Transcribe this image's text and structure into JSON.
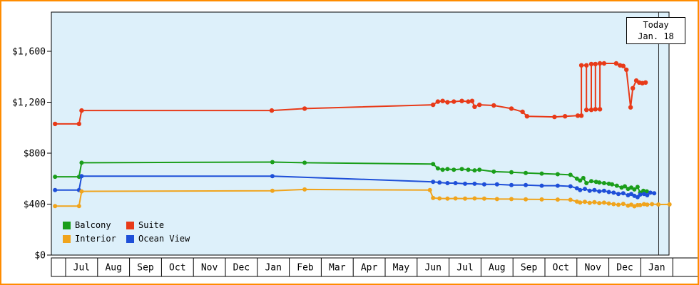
{
  "chart": {
    "plot_bg": "#ddf0fa",
    "frame_border_color": "#ff8c00",
    "today": {
      "line1": "Today",
      "line2": "Jan. 18"
    },
    "y_axis": {
      "ticks": [
        0,
        400,
        800,
        1200,
        1600
      ],
      "labels": [
        "$0",
        "$400",
        "$800",
        "$1,200",
        "$1,600"
      ]
    },
    "x_axis": {
      "months": [
        "Jul",
        "Aug",
        "Sep",
        "Oct",
        "Nov",
        "Dec",
        "Jan",
        "Feb",
        "Mar",
        "Apr",
        "May",
        "Jun",
        "Jul",
        "Aug",
        "Sep",
        "Oct",
        "Nov",
        "Dec",
        "Jan"
      ]
    },
    "legend": [
      {
        "label": "Balcony",
        "color": "#1a9e1a"
      },
      {
        "label": "Suite",
        "color": "#e83a18"
      },
      {
        "label": "Interior",
        "color": "#f0a41c"
      },
      {
        "label": "Ocean View",
        "color": "#1e4fd8"
      }
    ]
  },
  "chart_data": {
    "type": "line",
    "title": "",
    "xlabel": "",
    "ylabel": "",
    "grid": false,
    "legend_position": "bottom-left inside plot",
    "x_unit": "month_index (0 = start of first Jul cell, 1.0 per month)",
    "x_categories": [
      "Jul",
      "Aug",
      "Sep",
      "Oct",
      "Nov",
      "Dec",
      "Jan",
      "Feb",
      "Mar",
      "Apr",
      "May",
      "Jun",
      "Jul",
      "Aug",
      "Sep",
      "Oct",
      "Nov",
      "Dec",
      "Jan"
    ],
    "ylim": [
      0,
      1900
    ],
    "y_ticks": [
      0,
      400,
      800,
      1200,
      1600
    ],
    "today_marker": {
      "label": "Today Jan. 18",
      "x": 18.56
    },
    "series": [
      {
        "id": "suite",
        "name": "Suite",
        "color": "#e83a18",
        "points": [
          [
            -0.33,
            1030
          ],
          [
            0.42,
            1030
          ],
          [
            0.5,
            1135
          ],
          [
            6.45,
            1135
          ],
          [
            7.48,
            1150
          ],
          [
            11.5,
            1180
          ],
          [
            11.65,
            1205
          ],
          [
            11.8,
            1210
          ],
          [
            11.95,
            1200
          ],
          [
            12.15,
            1205
          ],
          [
            12.4,
            1210
          ],
          [
            12.6,
            1205
          ],
          [
            12.72,
            1210
          ],
          [
            12.8,
            1165
          ],
          [
            12.95,
            1180
          ],
          [
            13.4,
            1175
          ],
          [
            13.95,
            1150
          ],
          [
            14.3,
            1125
          ],
          [
            14.44,
            1090
          ],
          [
            15.3,
            1085
          ],
          [
            15.63,
            1090
          ],
          [
            16.03,
            1095
          ],
          [
            16.14,
            1095
          ],
          [
            16.14,
            1490
          ],
          [
            16.3,
            1490
          ],
          [
            16.3,
            1140
          ],
          [
            16.45,
            1140
          ],
          [
            16.45,
            1500
          ],
          [
            16.58,
            1500
          ],
          [
            16.58,
            1145
          ],
          [
            16.72,
            1145
          ],
          [
            16.72,
            1505
          ],
          [
            16.85,
            1505
          ],
          [
            17.23,
            1505
          ],
          [
            17.35,
            1490
          ],
          [
            17.45,
            1485
          ],
          [
            17.55,
            1455
          ],
          [
            17.68,
            1160
          ],
          [
            17.75,
            1310
          ],
          [
            17.86,
            1370
          ],
          [
            17.95,
            1355
          ],
          [
            18.05,
            1350
          ],
          [
            18.15,
            1355
          ]
        ]
      },
      {
        "id": "balcony",
        "name": "Balcony",
        "color": "#1a9e1a",
        "points": [
          [
            -0.33,
            615
          ],
          [
            0.42,
            615
          ],
          [
            0.5,
            725
          ],
          [
            6.47,
            730
          ],
          [
            7.48,
            725
          ],
          [
            11.5,
            715
          ],
          [
            11.65,
            680
          ],
          [
            11.8,
            670
          ],
          [
            11.95,
            675
          ],
          [
            12.15,
            670
          ],
          [
            12.4,
            675
          ],
          [
            12.6,
            670
          ],
          [
            12.8,
            665
          ],
          [
            12.95,
            670
          ],
          [
            13.4,
            655
          ],
          [
            13.95,
            650
          ],
          [
            14.4,
            645
          ],
          [
            14.9,
            640
          ],
          [
            15.4,
            635
          ],
          [
            15.8,
            630
          ],
          [
            16.0,
            600
          ],
          [
            16.1,
            585
          ],
          [
            16.2,
            605
          ],
          [
            16.3,
            565
          ],
          [
            16.45,
            580
          ],
          [
            16.6,
            575
          ],
          [
            16.7,
            570
          ],
          [
            16.85,
            565
          ],
          [
            17.0,
            560
          ],
          [
            17.1,
            555
          ],
          [
            17.25,
            545
          ],
          [
            17.4,
            530
          ],
          [
            17.5,
            540
          ],
          [
            17.6,
            520
          ],
          [
            17.7,
            530
          ],
          [
            17.8,
            515
          ],
          [
            17.9,
            535
          ],
          [
            17.98,
            490
          ],
          [
            18.08,
            505
          ],
          [
            18.19,
            500
          ]
        ]
      },
      {
        "id": "ocean-view",
        "name": "Ocean View",
        "color": "#1e4fd8",
        "points": [
          [
            -0.33,
            510
          ],
          [
            0.42,
            510
          ],
          [
            0.5,
            620
          ],
          [
            6.47,
            620
          ],
          [
            11.5,
            575
          ],
          [
            11.7,
            570
          ],
          [
            11.95,
            565
          ],
          [
            12.2,
            565
          ],
          [
            12.5,
            560
          ],
          [
            12.8,
            560
          ],
          [
            13.1,
            555
          ],
          [
            13.5,
            555
          ],
          [
            13.95,
            550
          ],
          [
            14.4,
            550
          ],
          [
            14.9,
            545
          ],
          [
            15.4,
            545
          ],
          [
            15.8,
            540
          ],
          [
            16.0,
            525
          ],
          [
            16.1,
            510
          ],
          [
            16.25,
            520
          ],
          [
            16.4,
            505
          ],
          [
            16.55,
            510
          ],
          [
            16.7,
            500
          ],
          [
            16.85,
            505
          ],
          [
            17.0,
            495
          ],
          [
            17.15,
            490
          ],
          [
            17.3,
            480
          ],
          [
            17.45,
            485
          ],
          [
            17.6,
            470
          ],
          [
            17.7,
            480
          ],
          [
            17.8,
            465
          ],
          [
            17.9,
            455
          ],
          [
            17.98,
            475
          ],
          [
            18.1,
            480
          ],
          [
            18.2,
            470
          ],
          [
            18.3,
            490
          ],
          [
            18.42,
            485
          ]
        ]
      },
      {
        "id": "interior",
        "name": "Interior",
        "color": "#f0a41c",
        "points": [
          [
            -0.33,
            385
          ],
          [
            0.42,
            385
          ],
          [
            0.5,
            500
          ],
          [
            6.47,
            505
          ],
          [
            7.48,
            515
          ],
          [
            11.4,
            510
          ],
          [
            11.5,
            448
          ],
          [
            11.7,
            445
          ],
          [
            11.95,
            443
          ],
          [
            12.2,
            445
          ],
          [
            12.5,
            443
          ],
          [
            12.8,
            445
          ],
          [
            13.1,
            443
          ],
          [
            13.5,
            440
          ],
          [
            13.95,
            440
          ],
          [
            14.4,
            438
          ],
          [
            14.9,
            437
          ],
          [
            15.4,
            436
          ],
          [
            15.8,
            434
          ],
          [
            16.0,
            420
          ],
          [
            16.1,
            413
          ],
          [
            16.25,
            418
          ],
          [
            16.4,
            410
          ],
          [
            16.55,
            415
          ],
          [
            16.7,
            408
          ],
          [
            16.85,
            412
          ],
          [
            17.0,
            405
          ],
          [
            17.15,
            400
          ],
          [
            17.3,
            395
          ],
          [
            17.45,
            402
          ],
          [
            17.6,
            388
          ],
          [
            17.7,
            396
          ],
          [
            17.8,
            383
          ],
          [
            17.9,
            392
          ],
          [
            17.98,
            392
          ],
          [
            18.1,
            400
          ],
          [
            18.2,
            396
          ],
          [
            18.35,
            400
          ],
          [
            18.55,
            397
          ],
          [
            18.9,
            398
          ]
        ]
      }
    ]
  }
}
